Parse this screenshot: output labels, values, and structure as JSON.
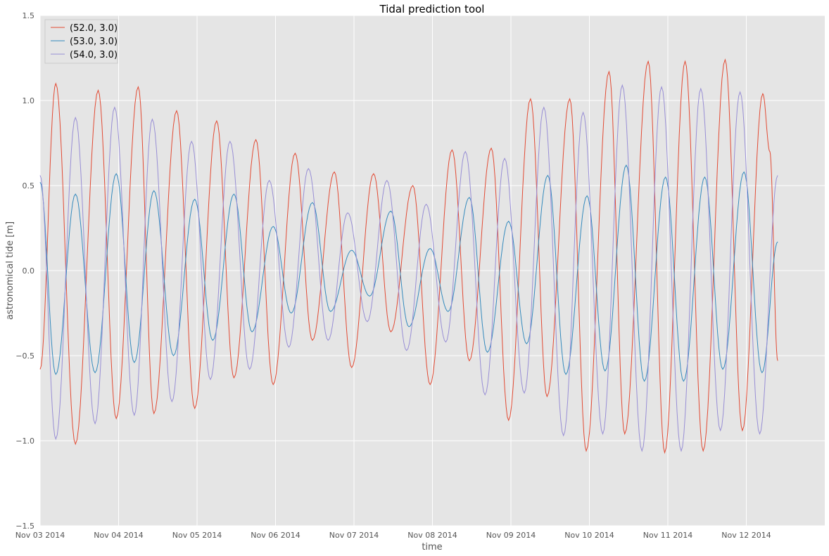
{
  "chart_data": {
    "type": "line",
    "title": "Tidal prediction tool",
    "xlabel": "time",
    "ylabel": "astronomical tide [m]",
    "xlim": [
      0,
      10.0
    ],
    "ylim": [
      -1.5,
      1.5
    ],
    "grid": true,
    "legend_position": "top-left",
    "x_ticks": [
      {
        "value": 0,
        "label": "Nov 03 2014"
      },
      {
        "value": 1,
        "label": "Nov 04 2014"
      },
      {
        "value": 2,
        "label": "Nov 05 2014"
      },
      {
        "value": 3,
        "label": "Nov 06 2014"
      },
      {
        "value": 4,
        "label": "Nov 07 2014"
      },
      {
        "value": 5,
        "label": "Nov 08 2014"
      },
      {
        "value": 6,
        "label": "Nov 09 2014"
      },
      {
        "value": 7,
        "label": "Nov 10 2014"
      },
      {
        "value": 8,
        "label": "Nov 11 2014"
      },
      {
        "value": 9,
        "label": "Nov 12 2014"
      }
    ],
    "y_ticks": [
      {
        "value": -1.5,
        "label": "−1.5"
      },
      {
        "value": -1.0,
        "label": "−1.0"
      },
      {
        "value": -0.5,
        "label": "−0.5"
      },
      {
        "value": 0.0,
        "label": "0.0"
      },
      {
        "value": 0.5,
        "label": "0.5"
      },
      {
        "value": 1.0,
        "label": "1.0"
      },
      {
        "value": 1.5,
        "label": "1.5"
      }
    ],
    "x_unit": "days since Nov 03 2014 00:00",
    "series": [
      {
        "name": "(52.0, 3.0)",
        "color": "#e24a33",
        "points": [
          [
            0.0,
            -0.58
          ],
          [
            0.2,
            1.1
          ],
          [
            0.45,
            -1.02
          ],
          [
            0.74,
            1.06
          ],
          [
            0.97,
            -0.87
          ],
          [
            1.25,
            1.08
          ],
          [
            1.45,
            -0.84
          ],
          [
            1.74,
            0.94
          ],
          [
            1.97,
            -0.81
          ],
          [
            2.25,
            0.88
          ],
          [
            2.47,
            -0.63
          ],
          [
            2.75,
            0.77
          ],
          [
            2.97,
            -0.67
          ],
          [
            3.25,
            0.69
          ],
          [
            3.47,
            -0.41
          ],
          [
            3.75,
            0.58
          ],
          [
            3.97,
            -0.57
          ],
          [
            4.25,
            0.57
          ],
          [
            4.47,
            -0.36
          ],
          [
            4.75,
            0.5
          ],
          [
            4.97,
            -0.67
          ],
          [
            5.25,
            0.71
          ],
          [
            5.47,
            -0.53
          ],
          [
            5.75,
            0.72
          ],
          [
            5.97,
            -0.88
          ],
          [
            6.25,
            1.01
          ],
          [
            6.46,
            -0.74
          ],
          [
            6.75,
            1.01
          ],
          [
            6.96,
            -1.06
          ],
          [
            7.25,
            1.17
          ],
          [
            7.45,
            -0.96
          ],
          [
            7.75,
            1.23
          ],
          [
            7.96,
            -1.07
          ],
          [
            8.22,
            1.23
          ],
          [
            8.45,
            -1.06
          ],
          [
            8.73,
            1.24
          ],
          [
            8.95,
            -0.94
          ],
          [
            9.21,
            1.04
          ],
          [
            9.3,
            0.7
          ],
          [
            9.4,
            -0.53
          ]
        ]
      },
      {
        "name": "(53.0, 3.0)",
        "color": "#348abd",
        "points": [
          [
            0.0,
            0.52
          ],
          [
            0.2,
            -0.61
          ],
          [
            0.45,
            0.45
          ],
          [
            0.7,
            -0.6
          ],
          [
            0.97,
            0.57
          ],
          [
            1.2,
            -0.54
          ],
          [
            1.45,
            0.47
          ],
          [
            1.7,
            -0.5
          ],
          [
            1.97,
            0.42
          ],
          [
            2.2,
            -0.41
          ],
          [
            2.47,
            0.45
          ],
          [
            2.7,
            -0.36
          ],
          [
            2.97,
            0.26
          ],
          [
            3.2,
            -0.25
          ],
          [
            3.47,
            0.4
          ],
          [
            3.7,
            -0.24
          ],
          [
            3.97,
            0.12
          ],
          [
            4.2,
            -0.15
          ],
          [
            4.47,
            0.35
          ],
          [
            4.7,
            -0.33
          ],
          [
            4.97,
            0.13
          ],
          [
            5.2,
            -0.24
          ],
          [
            5.47,
            0.43
          ],
          [
            5.7,
            -0.48
          ],
          [
            5.97,
            0.29
          ],
          [
            6.2,
            -0.43
          ],
          [
            6.47,
            0.56
          ],
          [
            6.7,
            -0.61
          ],
          [
            6.97,
            0.44
          ],
          [
            7.2,
            -0.59
          ],
          [
            7.47,
            0.62
          ],
          [
            7.7,
            -0.65
          ],
          [
            7.97,
            0.55
          ],
          [
            8.2,
            -0.65
          ],
          [
            8.47,
            0.55
          ],
          [
            8.7,
            -0.58
          ],
          [
            8.97,
            0.58
          ],
          [
            9.2,
            -0.6
          ],
          [
            9.4,
            0.17
          ]
        ]
      },
      {
        "name": "(54.0, 3.0)",
        "color": "#988ed5",
        "points": [
          [
            0.0,
            0.56
          ],
          [
            0.2,
            -0.99
          ],
          [
            0.45,
            0.9
          ],
          [
            0.7,
            -0.9
          ],
          [
            0.95,
            0.96
          ],
          [
            1.2,
            -0.85
          ],
          [
            1.43,
            0.89
          ],
          [
            1.68,
            -0.77
          ],
          [
            1.93,
            0.76
          ],
          [
            2.17,
            -0.64
          ],
          [
            2.42,
            0.76
          ],
          [
            2.67,
            -0.58
          ],
          [
            2.92,
            0.53
          ],
          [
            3.17,
            -0.45
          ],
          [
            3.42,
            0.6
          ],
          [
            3.67,
            -0.41
          ],
          [
            3.92,
            0.34
          ],
          [
            4.17,
            -0.3
          ],
          [
            4.42,
            0.53
          ],
          [
            4.67,
            -0.47
          ],
          [
            4.92,
            0.39
          ],
          [
            5.17,
            -0.42
          ],
          [
            5.42,
            0.7
          ],
          [
            5.67,
            -0.73
          ],
          [
            5.92,
            0.66
          ],
          [
            6.17,
            -0.72
          ],
          [
            6.42,
            0.96
          ],
          [
            6.67,
            -0.97
          ],
          [
            6.92,
            0.93
          ],
          [
            7.17,
            -0.96
          ],
          [
            7.42,
            1.09
          ],
          [
            7.67,
            -1.06
          ],
          [
            7.92,
            1.08
          ],
          [
            8.17,
            -1.06
          ],
          [
            8.42,
            1.07
          ],
          [
            8.67,
            -0.94
          ],
          [
            8.92,
            1.05
          ],
          [
            9.17,
            -0.96
          ],
          [
            9.4,
            0.56
          ]
        ]
      }
    ]
  }
}
